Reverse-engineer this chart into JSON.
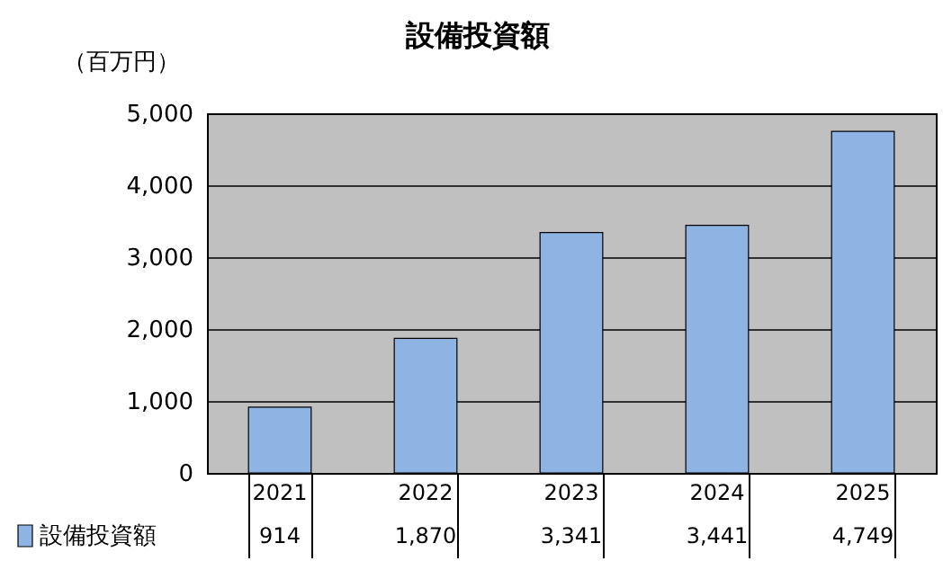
{
  "chart_data": {
    "type": "bar",
    "title": "設備投資額",
    "ylabel": "（百万円）",
    "categories": [
      "2021",
      "2022",
      "2023",
      "2024",
      "2025"
    ],
    "series": [
      {
        "name": "設備投資額",
        "color": "#8eb4e3",
        "values": [
          914,
          1870,
          3341,
          3441,
          4749
        ],
        "value_labels": [
          "914",
          "1,870",
          "3,341",
          "3,441",
          "4,749"
        ]
      }
    ],
    "ylim": [
      0,
      5000
    ],
    "yticks": [
      0,
      {
        "value": 1000,
        "label": "1,000"
      },
      {
        "value": 2000,
        "label": "2,000"
      },
      {
        "value": 3000,
        "label": "3,000"
      },
      {
        "value": 4000,
        "label": "4,000"
      },
      {
        "value": 5000,
        "label": "5,000"
      }
    ],
    "grid": true,
    "legend": "bottom left"
  }
}
